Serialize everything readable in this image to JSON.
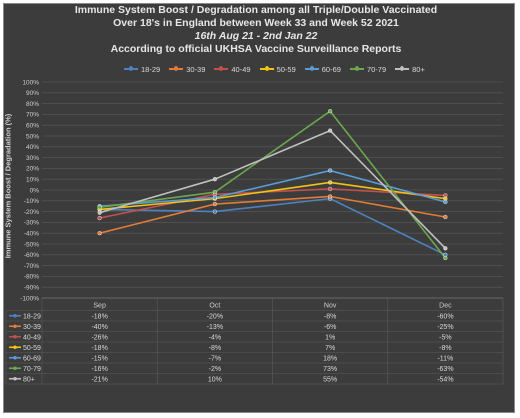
{
  "title_lines": [
    "Immune System Boost / Degradation among all Triple/Double Vaccinated",
    "Over 18's in England between Week 33 and Week 52 2021",
    "16th Aug 21 - 2nd Jan 22",
    "According to official UKHSA Vaccine Surveillance Reports"
  ],
  "chart_data": {
    "type": "line",
    "ylabel": "Immune System Boost / Degradation (%)",
    "xlabel": "",
    "categories": [
      "Sep",
      "Oct",
      "Nov",
      "Dec"
    ],
    "ylim": [
      -100,
      100
    ],
    "yticks": [
      "-100%",
      "-90%",
      "-80%",
      "-70%",
      "-60%",
      "-50%",
      "-40%",
      "-30%",
      "-20%",
      "-10%",
      "0%",
      "10%",
      "20%",
      "30%",
      "40%",
      "50%",
      "60%",
      "70%",
      "80%",
      "90%",
      "100%"
    ],
    "grid": true,
    "legend_position": "top",
    "series": [
      {
        "name": "18-29",
        "color": "#4f81bd",
        "values": [
          -18,
          -20,
          -8,
          -60
        ],
        "labels": [
          "-18%",
          "-20%",
          "-8%",
          "-60%"
        ]
      },
      {
        "name": "30-39",
        "color": "#e07b39",
        "values": [
          -40,
          -13,
          -6,
          -25
        ],
        "labels": [
          "-40%",
          "-13%",
          "-6%",
          "-25%"
        ]
      },
      {
        "name": "40-49",
        "color": "#c0504d",
        "values": [
          -26,
          -4,
          1,
          -5
        ],
        "labels": [
          "-26%",
          "-4%",
          "1%",
          "-5%"
        ]
      },
      {
        "name": "50-59",
        "color": "#f2c314",
        "values": [
          -18,
          -8,
          7,
          -8
        ],
        "labels": [
          "-18%",
          "-8%",
          "7%",
          "-8%"
        ]
      },
      {
        "name": "60-69",
        "color": "#5b9bd5",
        "values": [
          -15,
          -7,
          18,
          -11
        ],
        "labels": [
          "-15%",
          "-7%",
          "18%",
          "-11%"
        ]
      },
      {
        "name": "70-79",
        "color": "#6aa84f",
        "values": [
          -16,
          -2,
          73,
          -63
        ],
        "labels": [
          "-16%",
          "-2%",
          "73%",
          "-63%"
        ]
      },
      {
        "name": "80+",
        "color": "#bfbfbf",
        "values": [
          -21,
          10,
          55,
          -54
        ],
        "labels": [
          "-21%",
          "10%",
          "55%",
          "-54%"
        ]
      }
    ]
  }
}
